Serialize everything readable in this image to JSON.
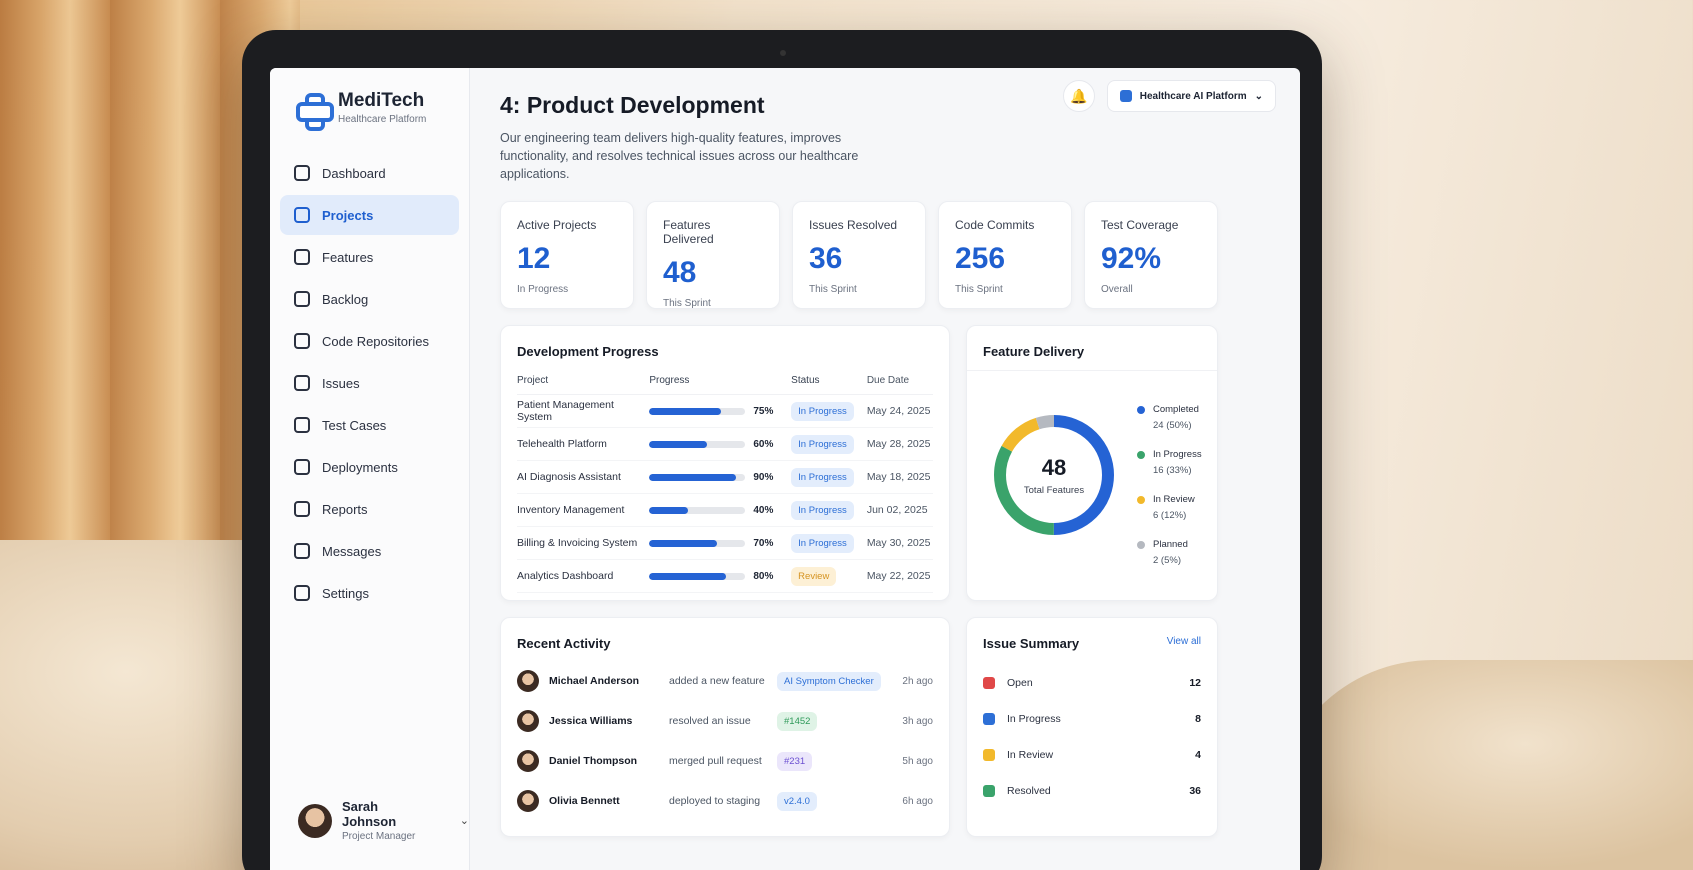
{
  "brand": {
    "name": "MediTech",
    "subtitle": "Healthcare Platform"
  },
  "sidebar": {
    "items": [
      {
        "label": "Dashboard",
        "icon": "home-icon",
        "active": false
      },
      {
        "label": "Projects",
        "icon": "projects-icon",
        "active": true
      },
      {
        "label": "Features",
        "icon": "features-icon",
        "active": false
      },
      {
        "label": "Backlog",
        "icon": "backlog-icon",
        "active": false
      },
      {
        "label": "Code Repositories",
        "icon": "code-icon",
        "active": false
      },
      {
        "label": "Issues",
        "icon": "issues-icon",
        "active": false
      },
      {
        "label": "Test Cases",
        "icon": "test-icon",
        "active": false
      },
      {
        "label": "Deployments",
        "icon": "deploy-icon",
        "active": false
      },
      {
        "label": "Reports",
        "icon": "reports-icon",
        "active": false
      },
      {
        "label": "Messages",
        "icon": "messages-icon",
        "active": false
      },
      {
        "label": "Settings",
        "icon": "gear-icon",
        "active": false
      }
    ]
  },
  "user": {
    "name": "Sarah Johnson",
    "role": "Project Manager"
  },
  "topbar": {
    "platform": "Healthcare AI Platform"
  },
  "page": {
    "title": "4: Product Development",
    "description": "Our engineering team delivers high-quality features, improves functionality, and resolves technical issues across our healthcare applications."
  },
  "stats": [
    {
      "label": "Active Projects",
      "value": "12",
      "sub": "In Progress"
    },
    {
      "label": "Features Delivered",
      "value": "48",
      "sub": "This Sprint"
    },
    {
      "label": "Issues Resolved",
      "value": "36",
      "sub": "This Sprint"
    },
    {
      "label": "Code Commits",
      "value": "256",
      "sub": "This Sprint"
    },
    {
      "label": "Test Coverage",
      "value": "92%",
      "sub": "Overall"
    }
  ],
  "dev_progress": {
    "title": "Development Progress",
    "columns": [
      "Project",
      "Progress",
      "Status",
      "Due Date"
    ],
    "rows": [
      {
        "project": "Patient Management System",
        "progress": 75,
        "pct": "75%",
        "status": "In Progress",
        "due": "May 24, 2025"
      },
      {
        "project": "Telehealth Platform",
        "progress": 60,
        "pct": "60%",
        "status": "In Progress",
        "due": "May 28, 2025"
      },
      {
        "project": "AI Diagnosis Assistant",
        "progress": 90,
        "pct": "90%",
        "status": "In Progress",
        "due": "May 18, 2025"
      },
      {
        "project": "Inventory Management",
        "progress": 40,
        "pct": "40%",
        "status": "In Progress",
        "due": "Jun 02, 2025"
      },
      {
        "project": "Billing & Invoicing System",
        "progress": 70,
        "pct": "70%",
        "status": "In Progress",
        "due": "May 30, 2025"
      },
      {
        "project": "Analytics Dashboard",
        "progress": 80,
        "pct": "80%",
        "status": "Review",
        "due": "May 22, 2025"
      }
    ]
  },
  "feature_delivery": {
    "title": "Feature Delivery",
    "total": "48",
    "total_label": "Total Features",
    "legend": [
      {
        "label": "Completed",
        "value": "24 (50%)",
        "percent": 50,
        "color": "#2563d4"
      },
      {
        "label": "In Progress",
        "value": "16 (33%)",
        "percent": 33,
        "color": "#3aa36b"
      },
      {
        "label": "In Review",
        "value": "6 (12%)",
        "percent": 12,
        "color": "#f2b92b"
      },
      {
        "label": "Planned",
        "value": "2 (5%)",
        "percent": 5,
        "color": "#b5b9c0"
      }
    ]
  },
  "recent_activity": {
    "title": "Recent Activity",
    "items": [
      {
        "name": "Michael Anderson",
        "action": "added a new feature",
        "tag": "AI Symptom Checker",
        "tag_style": "blue",
        "time": "2h ago"
      },
      {
        "name": "Jessica Williams",
        "action": "resolved an issue",
        "tag": "#1452",
        "tag_style": "green",
        "time": "3h ago"
      },
      {
        "name": "Daniel Thompson",
        "action": "merged pull request",
        "tag": "#231",
        "tag_style": "purple",
        "time": "5h ago"
      },
      {
        "name": "Olivia Bennett",
        "action": "deployed to staging",
        "tag": "v2.4.0",
        "tag_style": "blue",
        "time": "6h ago"
      }
    ]
  },
  "issue_summary": {
    "title": "Issue Summary",
    "view_all": "View all",
    "items": [
      {
        "label": "Open",
        "count": "12",
        "color": "#e04848"
      },
      {
        "label": "In Progress",
        "count": "8",
        "color": "#2d6fd6"
      },
      {
        "label": "In Review",
        "count": "4",
        "color": "#f2b92b"
      },
      {
        "label": "Resolved",
        "count": "36",
        "color": "#3aa36b"
      }
    ]
  }
}
